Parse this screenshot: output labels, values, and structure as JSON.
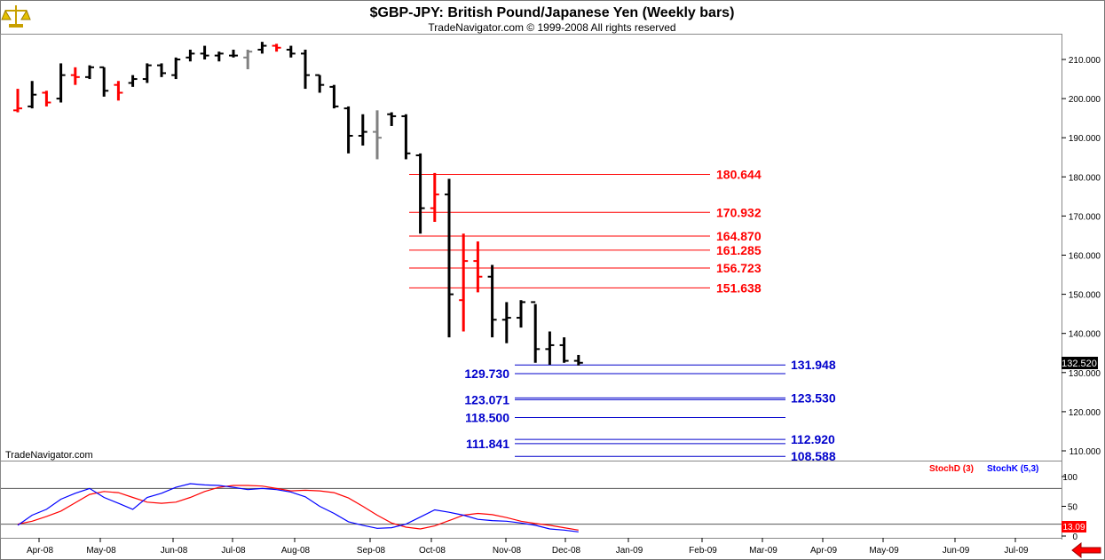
{
  "header": {
    "title": "$GBP-JPY:  British Pound/Japanese Yen  (Weekly bars)",
    "copyright": "TradeNavigator.com © 1999-2008 All rights reserved"
  },
  "watermark": "TradeNavigator.com",
  "colors": {
    "up_bar": "#000000",
    "down_bar": "#ff0000",
    "neutral_bar": "#808080",
    "fib_upper": "#ff0000",
    "fib_lower": "#0000cc",
    "stoch_d": "#ff0000",
    "stoch_k": "#0000ff",
    "nav_arrow": "#ff0000"
  },
  "icons": {
    "logo": "scale-icon",
    "nav": "left-arrow-icon"
  },
  "indicator_legend": {
    "stoch_d": "StochD (3)",
    "stoch_k": "StochK (5,3)"
  },
  "last_price_label": "132.520",
  "stoch_last_label": "13.09",
  "chart_data": [
    {
      "type": "ohlc",
      "title": "$GBP-JPY:  British Pound/Japanese Yen  (Weekly bars)",
      "ylim": [
        106,
        216
      ],
      "y_ticks": [
        "110.000",
        "120.000",
        "130.000",
        "140.000",
        "150.000",
        "160.000",
        "170.000",
        "180.000",
        "190.000",
        "200.000",
        "210.000"
      ],
      "x_labels": [
        "Apr-08",
        "May-08",
        "Jun-08",
        "Jul-08",
        "Aug-08",
        "Sep-08",
        "Oct-08",
        "Nov-08",
        "Dec-08",
        "Jan-09",
        "Feb-09",
        "Mar-09",
        "Apr-09",
        "May-09",
        "Jun-09",
        "Jul-09"
      ],
      "bars": [
        {
          "h": 202.5,
          "l": 196.5,
          "o": 197.0,
          "c": 197.5,
          "col": "down"
        },
        {
          "h": 204.5,
          "l": 197.5,
          "o": 198.0,
          "c": 201.0,
          "col": "up"
        },
        {
          "h": 202.0,
          "l": 198.0,
          "o": 201.5,
          "c": 199.0,
          "col": "down"
        },
        {
          "h": 209.0,
          "l": 199.0,
          "o": 200.0,
          "c": 206.0,
          "col": "up"
        },
        {
          "h": 208.0,
          "l": 203.5,
          "o": 206.0,
          "c": 205.5,
          "col": "down"
        },
        {
          "h": 208.5,
          "l": 205.0,
          "o": 205.5,
          "c": 208.0,
          "col": "up"
        },
        {
          "h": 208.0,
          "l": 200.5,
          "o": 208.0,
          "c": 202.0,
          "col": "up"
        },
        {
          "h": 204.5,
          "l": 199.5,
          "o": 203.5,
          "c": 201.5,
          "col": "down"
        },
        {
          "h": 206.0,
          "l": 203.0,
          "o": 204.0,
          "c": 205.0,
          "col": "up"
        },
        {
          "h": 209.0,
          "l": 204.0,
          "o": 205.0,
          "c": 208.5,
          "col": "up"
        },
        {
          "h": 209.0,
          "l": 205.5,
          "o": 208.5,
          "c": 206.5,
          "col": "up"
        },
        {
          "h": 210.5,
          "l": 205.0,
          "o": 206.0,
          "c": 210.0,
          "col": "up"
        },
        {
          "h": 212.5,
          "l": 209.5,
          "o": 210.5,
          "c": 211.5,
          "col": "up"
        },
        {
          "h": 213.5,
          "l": 210.0,
          "o": 211.5,
          "c": 211.0,
          "col": "up"
        },
        {
          "h": 212.0,
          "l": 209.5,
          "o": 211.0,
          "c": 211.5,
          "col": "up"
        },
        {
          "h": 212.5,
          "l": 210.5,
          "o": 211.0,
          "c": 211.0,
          "col": "up"
        },
        {
          "h": 212.5,
          "l": 207.5,
          "o": 210.5,
          "c": 212.0,
          "col": "neutral"
        },
        {
          "h": 214.5,
          "l": 211.5,
          "o": 212.5,
          "c": 213.5,
          "col": "up"
        },
        {
          "h": 214.0,
          "l": 212.0,
          "o": 213.5,
          "c": 213.0,
          "col": "down"
        },
        {
          "h": 213.5,
          "l": 210.5,
          "o": 212.5,
          "c": 211.5,
          "col": "up"
        },
        {
          "h": 212.5,
          "l": 202.5,
          "o": 211.5,
          "c": 206.0,
          "col": "up"
        },
        {
          "h": 206.0,
          "l": 201.5,
          "o": 206.0,
          "c": 203.5,
          "col": "up"
        },
        {
          "h": 203.5,
          "l": 197.5,
          "o": 203.0,
          "c": 198.0,
          "col": "up"
        },
        {
          "h": 198.0,
          "l": 186.0,
          "o": 197.5,
          "c": 190.5,
          "col": "up"
        },
        {
          "h": 196.0,
          "l": 188.0,
          "o": 190.5,
          "c": 191.5,
          "col": "up"
        },
        {
          "h": 197.0,
          "l": 184.5,
          "o": 191.5,
          "c": 190.0,
          "col": "neutral"
        },
        {
          "h": 196.5,
          "l": 193.0,
          "o": 196.0,
          "c": 195.5,
          "col": "up"
        },
        {
          "h": 196.0,
          "l": 184.5,
          "o": 195.5,
          "c": 186.0,
          "col": "up"
        },
        {
          "h": 186.0,
          "l": 165.5,
          "o": 185.5,
          "c": 172.0,
          "col": "up"
        },
        {
          "h": 181.0,
          "l": 168.5,
          "o": 172.0,
          "c": 175.5,
          "col": "down"
        },
        {
          "h": 179.5,
          "l": 139.0,
          "o": 175.5,
          "c": 150.0,
          "col": "up"
        },
        {
          "h": 165.5,
          "l": 140.5,
          "o": 148.5,
          "c": 158.5,
          "col": "down"
        },
        {
          "h": 163.5,
          "l": 150.5,
          "o": 158.5,
          "c": 154.5,
          "col": "down"
        },
        {
          "h": 157.5,
          "l": 139.0,
          "o": 154.5,
          "c": 143.5,
          "col": "up"
        },
        {
          "h": 148.0,
          "l": 137.5,
          "o": 143.5,
          "c": 144.0,
          "col": "up"
        },
        {
          "h": 148.5,
          "l": 141.5,
          "o": 144.0,
          "c": 148.0,
          "col": "up"
        },
        {
          "h": 147.5,
          "l": 132.5,
          "o": 148.0,
          "c": 136.0,
          "col": "up"
        },
        {
          "h": 140.5,
          "l": 132.0,
          "o": 136.0,
          "c": 137.0,
          "col": "up"
        },
        {
          "h": 139.0,
          "l": 132.5,
          "o": 137.0,
          "c": 133.0,
          "col": "up"
        },
        {
          "h": 134.5,
          "l": 131.8,
          "o": 133.0,
          "c": 132.5,
          "col": "up"
        }
      ],
      "fib_upper": [
        180.644,
        170.932,
        164.87,
        161.285,
        156.723,
        151.638
      ],
      "fib_lower_right": [
        131.948,
        123.53,
        112.92,
        108.588
      ],
      "fib_lower_left": [
        129.73,
        123.071,
        118.5,
        111.841
      ]
    },
    {
      "type": "line",
      "title": "StochD (3) / StochK (5,3)",
      "ylim": [
        0,
        100
      ],
      "y_ticks": [
        "0",
        "50",
        "100"
      ],
      "reference_lines": [
        80,
        20
      ],
      "series": [
        {
          "name": "StochD (3)",
          "values": [
            20,
            25,
            33,
            42,
            56,
            70,
            75,
            73,
            65,
            57,
            55,
            57,
            65,
            75,
            82,
            85,
            85,
            84,
            80,
            76,
            77,
            76,
            73,
            64,
            50,
            35,
            22,
            15,
            12,
            17,
            26,
            35,
            38,
            36,
            31,
            25,
            21,
            18,
            14,
            10
          ]
        },
        {
          "name": "StochK (5,3)",
          "values": [
            18,
            35,
            45,
            62,
            72,
            80,
            65,
            55,
            45,
            65,
            72,
            82,
            88,
            86,
            85,
            82,
            78,
            80,
            78,
            74,
            66,
            50,
            38,
            24,
            18,
            13,
            14,
            20,
            32,
            44,
            40,
            35,
            28,
            26,
            25,
            22,
            18,
            12,
            10,
            7
          ]
        }
      ]
    }
  ]
}
